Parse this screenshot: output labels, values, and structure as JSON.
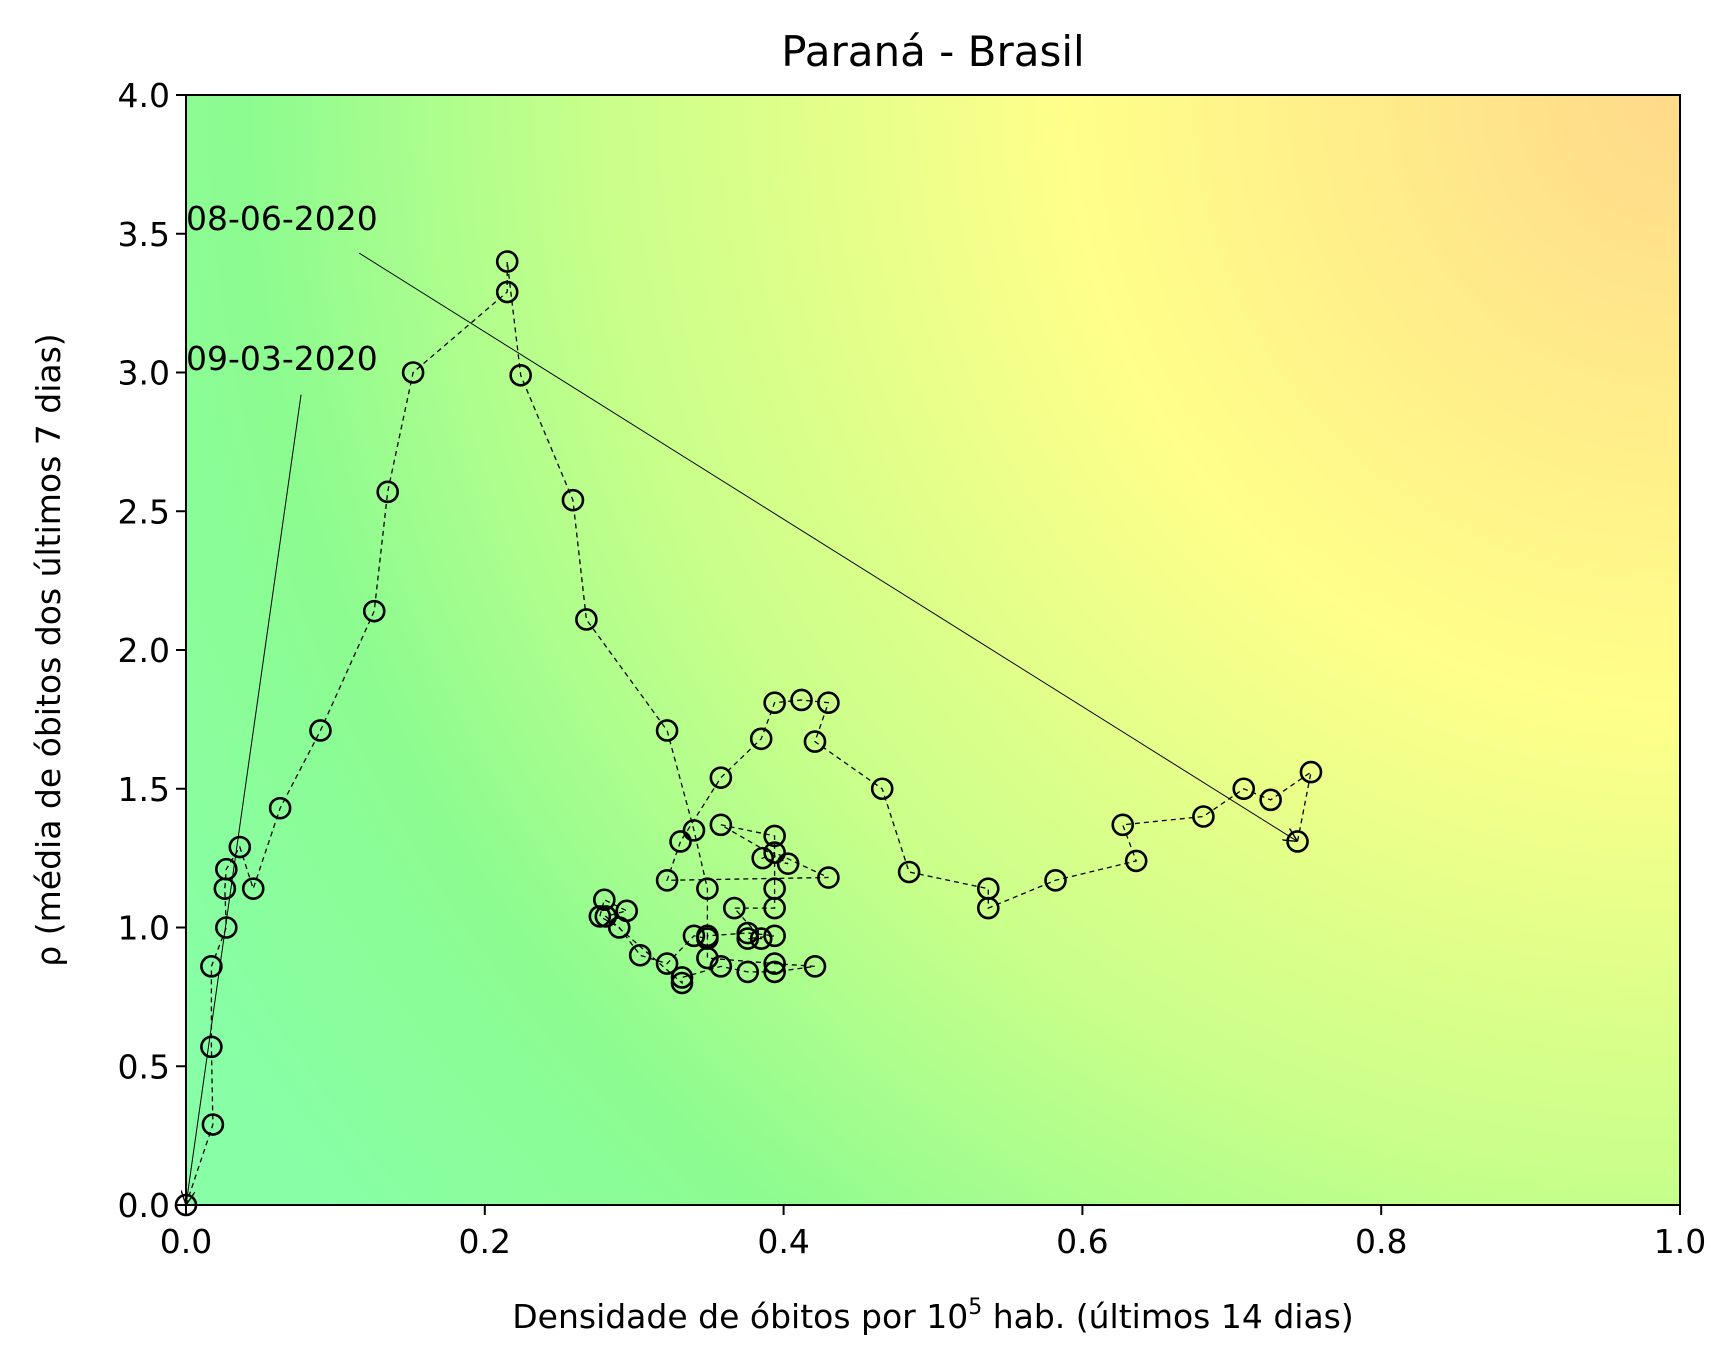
{
  "chart_data": {
    "type": "scatter",
    "title": "Paraná - Brasil",
    "xlabel_main": "Densidade de óbitos por 10",
    "xlabel_sup": "5",
    "xlabel_tail": " hab. (últimos 14 dias)",
    "ylabel": "ρ (média de óbitos dos últimos 7 dias)",
    "xlim": [
      0.0,
      1.0
    ],
    "ylim": [
      0.0,
      4.0
    ],
    "xticks": [
      "0.0",
      "0.2",
      "0.4",
      "0.6",
      "0.8",
      "1.0"
    ],
    "yticks": [
      "0.0",
      "0.5",
      "1.0",
      "1.5",
      "2.0",
      "2.5",
      "3.0",
      "3.5",
      "4.0"
    ],
    "grid": false,
    "background": "gradient green (bottom-left) to yellow to orange (top-right)",
    "colors": {
      "low": "#88ff9a",
      "mid": "#c8ff8a",
      "high_mid": "#ffff8a",
      "high": "#ffd98a",
      "markers": "#000000"
    },
    "series": [
      {
        "points": [
          [
            0.0,
            0.0
          ],
          [
            0.018,
            0.29
          ],
          [
            0.017,
            0.57
          ],
          [
            0.017,
            0.86
          ],
          [
            0.027,
            1.0
          ],
          [
            0.026,
            1.14
          ],
          [
            0.027,
            1.21
          ],
          [
            0.036,
            1.29
          ],
          [
            0.045,
            1.14
          ],
          [
            0.063,
            1.43
          ],
          [
            0.09,
            1.71
          ],
          [
            0.126,
            2.14
          ],
          [
            0.135,
            2.57
          ],
          [
            0.152,
            3.0
          ],
          [
            0.215,
            3.29
          ],
          [
            0.215,
            3.4
          ],
          [
            0.224,
            2.99
          ],
          [
            0.259,
            2.54
          ],
          [
            0.268,
            2.11
          ],
          [
            0.322,
            1.71
          ],
          [
            0.34,
            1.35
          ],
          [
            0.349,
            1.14
          ],
          [
            0.349,
            0.96
          ],
          [
            0.34,
            0.97
          ],
          [
            0.322,
            0.87
          ],
          [
            0.304,
            0.9
          ],
          [
            0.29,
            1.0
          ],
          [
            0.277,
            1.04
          ],
          [
            0.28,
            1.1
          ],
          [
            0.295,
            1.06
          ],
          [
            0.281,
            1.04
          ],
          [
            0.332,
            0.8
          ],
          [
            0.332,
            0.82
          ],
          [
            0.358,
            0.86
          ],
          [
            0.376,
            0.84
          ],
          [
            0.394,
            0.84
          ],
          [
            0.421,
            0.86
          ],
          [
            0.394,
            0.87
          ],
          [
            0.349,
            0.89
          ],
          [
            0.349,
            0.97
          ],
          [
            0.376,
            0.98
          ],
          [
            0.394,
            0.97
          ],
          [
            0.376,
            0.96
          ],
          [
            0.385,
            0.96
          ],
          [
            0.367,
            1.07
          ],
          [
            0.394,
            1.07
          ],
          [
            0.394,
            1.14
          ],
          [
            0.394,
            1.33
          ],
          [
            0.358,
            1.37
          ],
          [
            0.403,
            1.23
          ],
          [
            0.386,
            1.25
          ],
          [
            0.394,
            1.27
          ],
          [
            0.43,
            1.18
          ],
          [
            0.322,
            1.17
          ],
          [
            0.331,
            1.31
          ],
          [
            0.358,
            1.54
          ],
          [
            0.385,
            1.68
          ],
          [
            0.394,
            1.81
          ],
          [
            0.412,
            1.82
          ],
          [
            0.43,
            1.81
          ],
          [
            0.421,
            1.67
          ],
          [
            0.466,
            1.5
          ],
          [
            0.484,
            1.2
          ],
          [
            0.537,
            1.14
          ],
          [
            0.537,
            1.07
          ],
          [
            0.582,
            1.17
          ],
          [
            0.636,
            1.24
          ],
          [
            0.627,
            1.37
          ],
          [
            0.681,
            1.4
          ],
          [
            0.708,
            1.5
          ],
          [
            0.726,
            1.46
          ],
          [
            0.753,
            1.56
          ],
          [
            0.744,
            1.31
          ]
        ]
      }
    ],
    "annotations": [
      {
        "text": "08-06-2020",
        "points_to": [
          0.744,
          1.31
        ]
      },
      {
        "text": "09-03-2020",
        "points_to": [
          0.0,
          0.0
        ]
      }
    ]
  }
}
